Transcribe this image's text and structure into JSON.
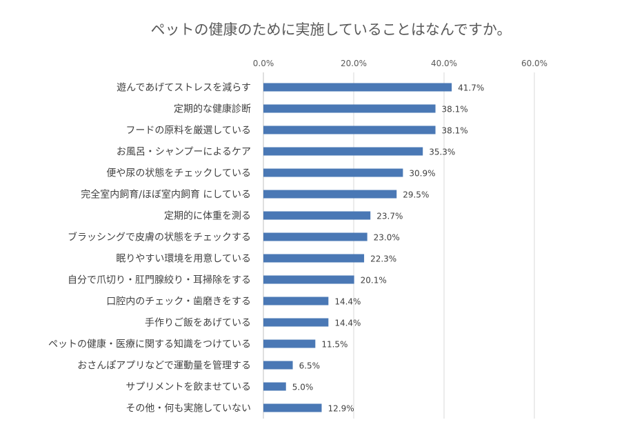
{
  "chart_data": {
    "type": "bar",
    "orientation": "horizontal",
    "title": "ペットの健康のために実施していることはなんですか。",
    "xlabel": "",
    "ylabel": "",
    "xlim": [
      0,
      60
    ],
    "ticks": [
      0,
      20,
      40,
      60
    ],
    "tick_labels": [
      "0.0%",
      "20.0%",
      "40.0%",
      "60.0%"
    ],
    "grid": true,
    "legend": "none",
    "bar_color": "#4a78b5",
    "categories": [
      "遊んであげてストレスを減らす",
      "定期的な健康診断",
      "フードの原料を厳選している",
      "お風呂・シャンプーによるケア",
      "便や尿の状態をチェックしている",
      "完全室内飼育/ほぼ室内飼育 にしている",
      "定期的に体重を測る",
      "ブラッシングで皮膚の状態をチェックする",
      "眠りやすい環境を用意している",
      "自分で爪切り・肛門腺絞り・耳掃除をする",
      "口腔内のチェック・歯磨きをする",
      "手作りご飯をあげている",
      "ペットの健康・医療に関する知識をつけている",
      "おさんぽアプリなどで運動量を管理する",
      "サプリメントを飲ませている",
      "その他・何も実施していない"
    ],
    "values": [
      41.7,
      38.1,
      38.1,
      35.3,
      30.9,
      29.5,
      23.7,
      23.0,
      22.3,
      20.1,
      14.4,
      14.4,
      11.5,
      6.5,
      5.0,
      12.9
    ],
    "value_labels": [
      "41.7%",
      "38.1%",
      "38.1%",
      "35.3%",
      "30.9%",
      "29.5%",
      "23.7%",
      "23.0%",
      "22.3%",
      "20.1%",
      "14.4%",
      "14.4%",
      "11.5%",
      "6.5%",
      "5.0%",
      "12.9%"
    ]
  }
}
